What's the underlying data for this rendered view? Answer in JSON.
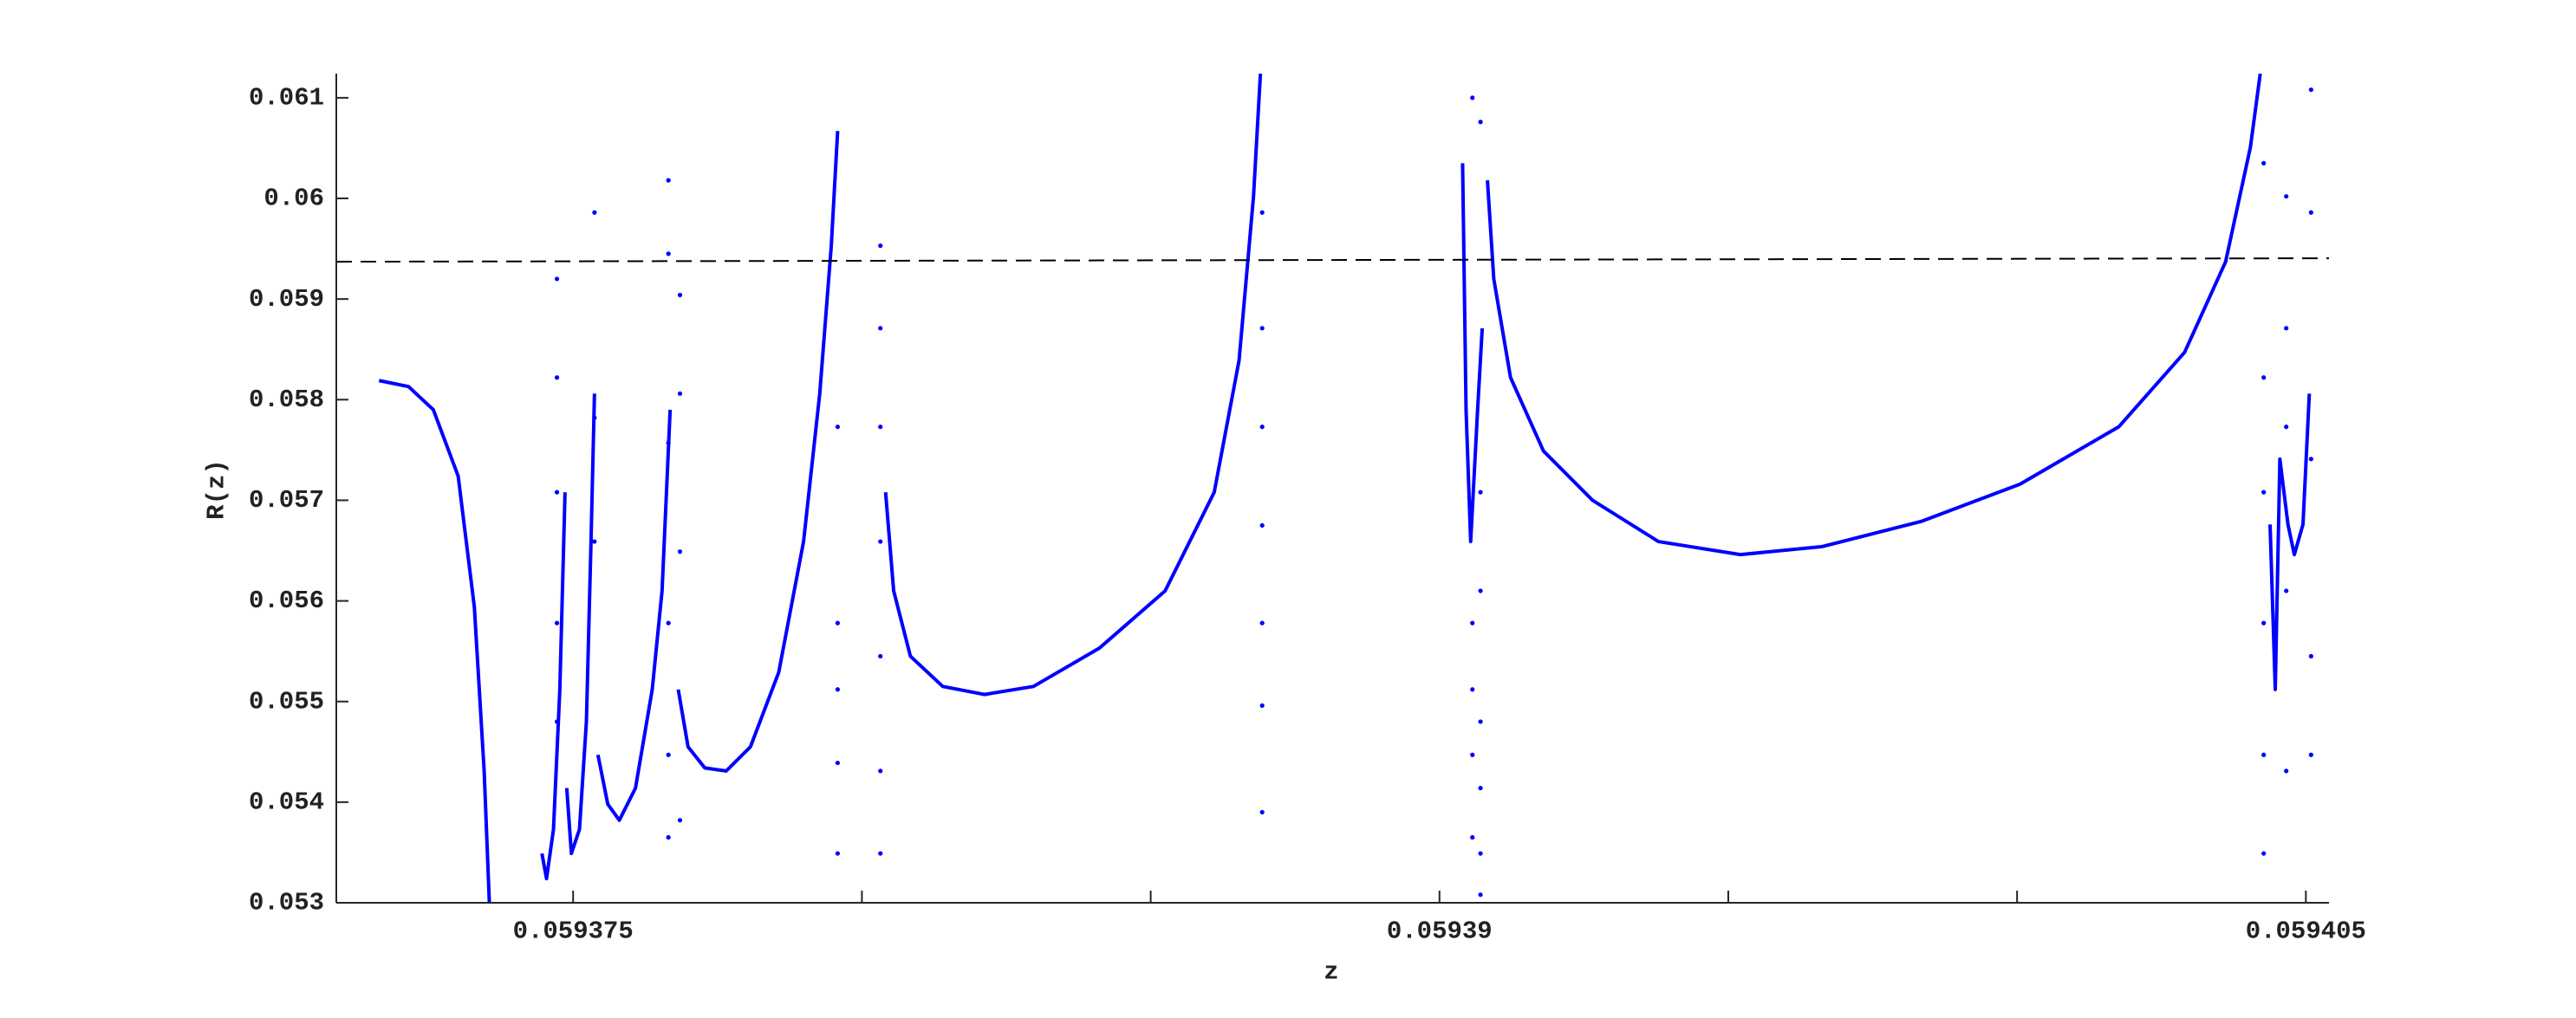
{
  "chart_data": {
    "type": "line",
    "xlabel": "z",
    "ylabel": "R(z)",
    "xlim": [
      0.0593709,
      0.0594054
    ],
    "ylim": [
      0.053,
      0.06124
    ],
    "xticks": [
      0.059375,
      0.05939,
      0.059405
    ],
    "xminorticks": [
      0.05938,
      0.059385,
      0.059395,
      0.0594
    ],
    "yticks": [
      0.053,
      0.054,
      0.055,
      0.056,
      0.057,
      0.058,
      0.059,
      0.06,
      0.061
    ],
    "series": [
      {
        "style": "line",
        "color": "#0000ff",
        "x": [
          0.05937164,
          0.05937215,
          0.05937258,
          0.05937301,
          0.05937329,
          0.05937346,
          0.05937355,
          null,
          0.05937446,
          0.05937454,
          0.05937466,
          0.05937477,
          0.05937486,
          null,
          0.05937489,
          0.05937497,
          0.05937511,
          0.05937523,
          0.05937531,
          0.05937537,
          null,
          0.05937543,
          0.0593756,
          0.0593758,
          0.05937608,
          0.05937637,
          0.05937654,
          0.05937668,
          null,
          0.05937682,
          0.05937699,
          0.05937728,
          0.05937765,
          0.05937807,
          0.05937856,
          0.05937899,
          0.05937927,
          0.05937947,
          0.05937958,
          null,
          0.05938041,
          0.05938055,
          0.05938084,
          0.0593814,
          0.05938212,
          0.05938297,
          0.05938411,
          0.05938525,
          0.0593861,
          0.05938653,
          0.05938678,
          0.0593869,
          null,
          0.0593904,
          0.05939046,
          0.05939054,
          0.05939066,
          0.05939074,
          null,
          0.05939083,
          0.05939094,
          0.05939123,
          0.0593918,
          0.05939265,
          0.05939379,
          0.05939521,
          0.05939663,
          0.05939834,
          0.05940005,
          0.05940176,
          0.0594029,
          0.05940361,
          0.05940404,
          0.05940421,
          null,
          0.05940438,
          0.05940447,
          0.05940455,
          0.05940469,
          0.0594048,
          0.05940495,
          0.05940506
        ],
        "values": [
          0.05819,
          0.05813,
          0.0579,
          0.05724,
          0.05594,
          0.05431,
          0.053,
          null,
          0.05349,
          0.05324,
          0.05373,
          0.05512,
          0.05708,
          null,
          0.05414,
          0.05349,
          0.05373,
          0.0548,
          0.05659,
          0.05806,
          null,
          0.05447,
          0.05398,
          0.05382,
          0.05414,
          0.05512,
          0.0561,
          0.0579,
          null,
          0.05512,
          0.05455,
          0.05434,
          0.05431,
          0.05455,
          0.05529,
          0.05659,
          0.05806,
          0.05953,
          0.06067,
          null,
          0.05708,
          0.0561,
          0.05545,
          0.05515,
          0.05507,
          0.05515,
          0.05553,
          0.0561,
          0.05708,
          0.05839,
          0.06002,
          0.06124,
          null,
          0.06035,
          0.0579,
          0.05659,
          0.0579,
          0.05871,
          null,
          0.06018,
          0.0592,
          0.05822,
          0.05749,
          0.057,
          0.05659,
          0.05646,
          0.05654,
          0.05679,
          0.05716,
          0.05773,
          0.05847,
          0.05937,
          0.06051,
          0.06124,
          null,
          0.05676,
          0.05512,
          0.05741,
          0.05676,
          0.05646,
          0.05676,
          0.05806
        ]
      },
      {
        "style": "dots",
        "color": "#0000ff",
        "x": [
          0.05937472,
          0.05937472,
          0.05937472,
          0.05937472,
          0.05937472,
          0.05937537,
          0.05937537,
          0.05937537,
          0.05937665,
          0.05937665,
          0.05937665,
          0.05937665,
          0.05937665,
          0.05937665,
          0.05937685,
          0.05937685,
          0.05937685,
          0.05937685,
          0.05937958,
          0.05937958,
          0.05937958,
          0.05937958,
          0.05937958,
          0.05938032,
          0.05938032,
          0.05938032,
          0.05938032,
          0.05938032,
          0.05938032,
          0.05938032,
          0.05938693,
          0.05938693,
          0.05938693,
          0.05938693,
          0.05938693,
          0.05938693,
          0.05938693,
          0.05939057,
          0.05939057,
          0.05939057,
          0.05939057,
          0.05939057,
          0.05939071,
          0.05939071,
          0.05939071,
          0.05939071,
          0.05939071,
          0.05939071,
          0.05939071,
          0.05940427,
          0.05940427,
          0.05940427,
          0.05940427,
          0.05940427,
          0.05940427,
          0.05940466,
          0.05940466,
          0.05940466,
          0.05940466,
          0.05940466,
          0.05940509,
          0.05940509,
          0.05940509,
          0.05940509,
          0.05940509
        ],
        "values": [
          0.0592,
          0.05822,
          0.05708,
          0.05578,
          0.0548,
          0.05986,
          0.05782,
          0.05659,
          0.06018,
          0.05945,
          0.05757,
          0.05578,
          0.05447,
          0.05365,
          0.05904,
          0.05806,
          0.05649,
          0.05382,
          0.05773,
          0.05578,
          0.05512,
          0.05439,
          0.05349,
          0.05953,
          0.05871,
          0.05773,
          0.05659,
          0.05545,
          0.05431,
          0.05349,
          0.05986,
          0.05871,
          0.05773,
          0.05675,
          0.05578,
          0.05496,
          0.0539,
          0.061,
          0.05578,
          0.05512,
          0.05447,
          0.05365,
          0.06076,
          0.05708,
          0.0561,
          0.0548,
          0.05414,
          0.05349,
          0.05308,
          0.06035,
          0.05822,
          0.05708,
          0.05578,
          0.05447,
          0.05349,
          0.06002,
          0.05871,
          0.05773,
          0.0561,
          0.05431,
          0.06108,
          0.05986,
          0.05741,
          0.05545,
          0.05447
        ]
      },
      {
        "style": "dashed",
        "color": "#000000",
        "x": [
          0.0593709,
          0.0594054
        ],
        "values": [
          0.0593709,
          0.0594054
        ]
      }
    ]
  }
}
